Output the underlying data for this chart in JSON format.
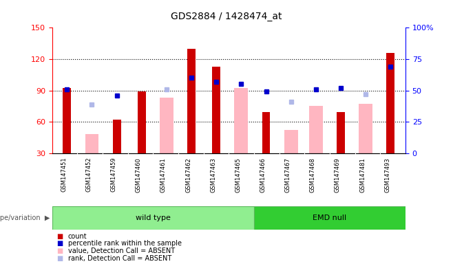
{
  "title": "GDS2884 / 1428474_at",
  "samples": [
    "GSM147451",
    "GSM147452",
    "GSM147459",
    "GSM147460",
    "GSM147461",
    "GSM147462",
    "GSM147463",
    "GSM147465",
    "GSM147466",
    "GSM147467",
    "GSM147468",
    "GSM147469",
    "GSM147481",
    "GSM147493"
  ],
  "wild_type_count": 8,
  "emd_null_count": 6,
  "count": [
    92,
    null,
    62,
    89,
    null,
    130,
    113,
    null,
    69,
    null,
    null,
    69,
    null,
    126
  ],
  "rank": [
    51,
    null,
    46,
    null,
    null,
    60,
    57,
    55,
    49,
    null,
    51,
    52,
    null,
    69
  ],
  "absent_value": [
    null,
    48,
    null,
    null,
    83,
    null,
    null,
    92,
    null,
    52,
    75,
    null,
    77,
    null
  ],
  "absent_rank": [
    null,
    39,
    null,
    null,
    51,
    null,
    null,
    null,
    null,
    41,
    null,
    null,
    47,
    null
  ],
  "ylim_left": [
    30,
    150
  ],
  "ylim_right": [
    0,
    100
  ],
  "yticks_left": [
    30,
    60,
    90,
    120,
    150
  ],
  "yticks_right": [
    0,
    25,
    50,
    75,
    100
  ],
  "ytick_right_labels": [
    "0",
    "25",
    "50",
    "75",
    "100%"
  ],
  "count_color": "#cc0000",
  "rank_color": "#0000cc",
  "absent_value_color": "#ffb6c1",
  "absent_rank_color": "#b0b8e8",
  "wild_type_color_light": "#b8f0b8",
  "wild_type_color": "#90ee90",
  "emd_null_color": "#32cd32",
  "tick_bg_color": "#d3d3d3",
  "background_color": "#ffffff",
  "grid_dotted_at": [
    60,
    90,
    120
  ],
  "bar_width": 0.55,
  "marker_size": 5,
  "legend_items": [
    {
      "color": "#cc0000",
      "label": "count"
    },
    {
      "color": "#0000cc",
      "label": "percentile rank within the sample"
    },
    {
      "color": "#ffb6c1",
      "label": "value, Detection Call = ABSENT"
    },
    {
      "color": "#b0b8e8",
      "label": "rank, Detection Call = ABSENT"
    }
  ]
}
